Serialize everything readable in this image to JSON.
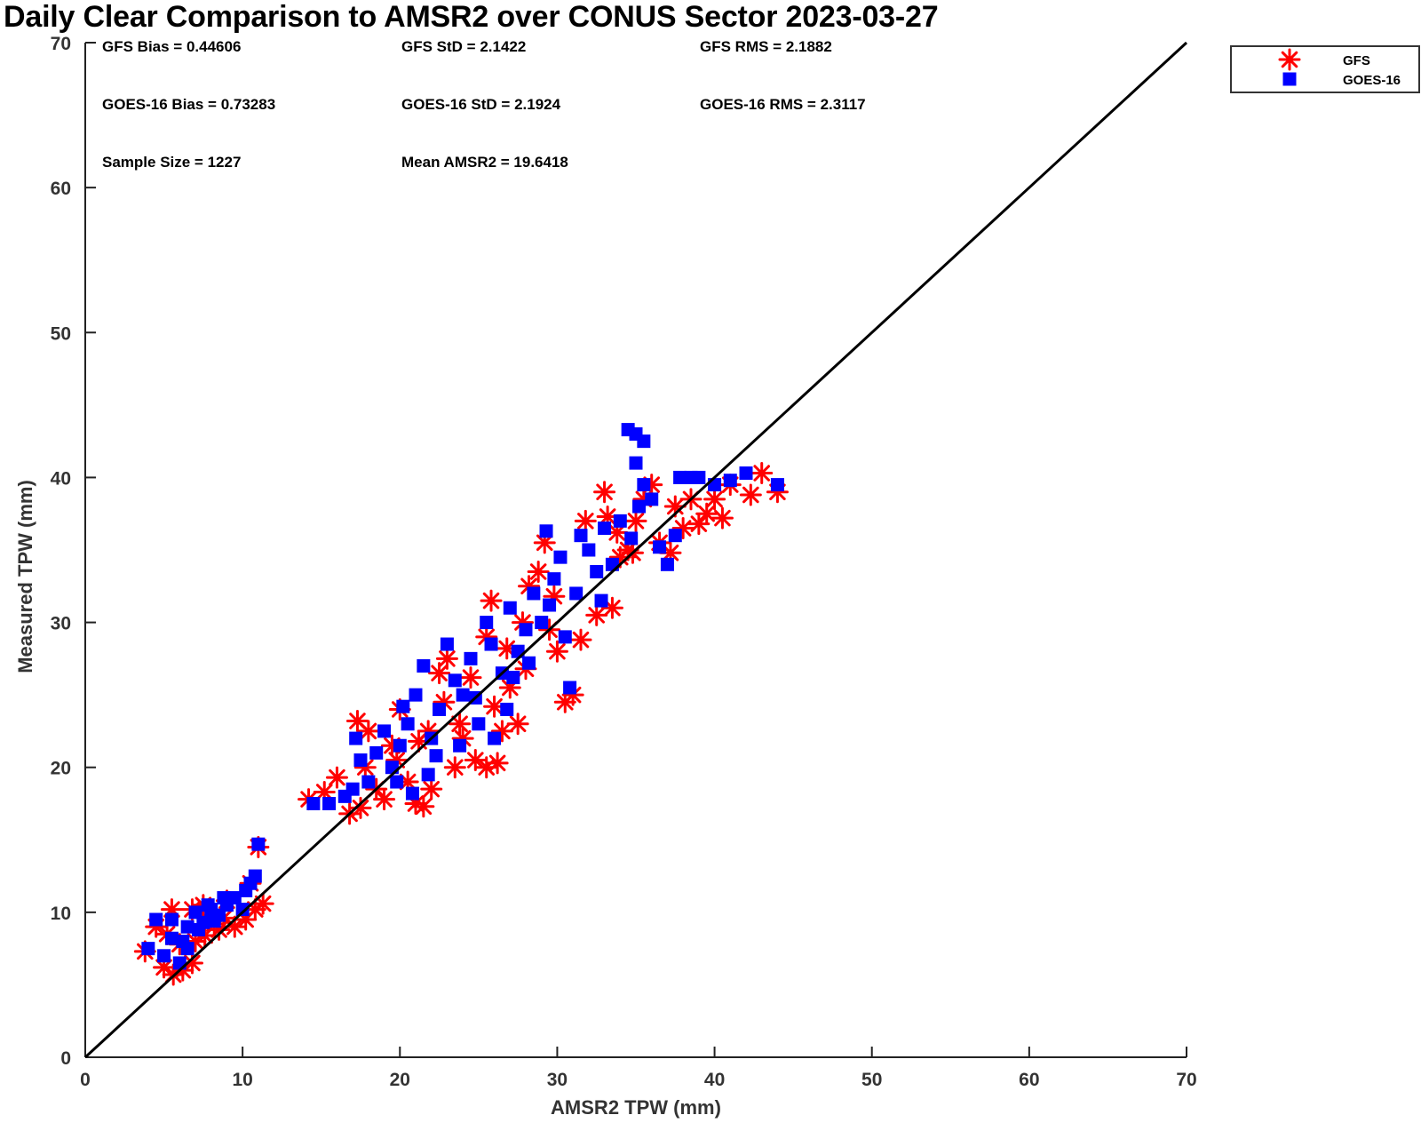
{
  "chart_data": {
    "type": "scatter",
    "title": "Daily Clear Comparison to AMSR2 over CONUS Sector 2023-03-27",
    "xlabel": "AMSR2 TPW (mm)",
    "ylabel": "Measured TPW (mm)",
    "xlim": [
      0,
      70
    ],
    "ylim": [
      0,
      70
    ],
    "xticks": [
      "0",
      "10",
      "20",
      "30",
      "40",
      "50",
      "60",
      "70"
    ],
    "yticks": [
      "0",
      "10",
      "20",
      "30",
      "40",
      "50",
      "60",
      "70"
    ],
    "grid": false,
    "legend_position": "outside top-right",
    "reference_line": {
      "from": [
        0,
        0
      ],
      "to": [
        70,
        70
      ],
      "color": "#000000"
    },
    "stats": [
      "GFS Bias = 0.44606",
      "GFS StD = 2.1422",
      "GFS RMS = 2.1882",
      "GOES-16 Bias = 0.73283",
      "GOES-16 StD = 2.1924",
      "GOES-16 RMS = 2.3117",
      "Sample Size = 1227",
      "Mean AMSR2 = 19.6418"
    ],
    "series": [
      {
        "name": "GFS",
        "marker": "asterisk",
        "color": "#ff0000",
        "points": [
          [
            3.8,
            7.3
          ],
          [
            4.5,
            9.0
          ],
          [
            5.0,
            6.2
          ],
          [
            5.6,
            5.7
          ],
          [
            6.2,
            6.0
          ],
          [
            6.8,
            6.5
          ],
          [
            5.2,
            8.5
          ],
          [
            6.0,
            7.8
          ],
          [
            7.0,
            8.0
          ],
          [
            7.6,
            8.4
          ],
          [
            8.2,
            9.2
          ],
          [
            8.8,
            9.6
          ],
          [
            9.5,
            9.0
          ],
          [
            10.2,
            9.5
          ],
          [
            10.8,
            10.2
          ],
          [
            11.3,
            10.6
          ],
          [
            9.0,
            10.8
          ],
          [
            7.5,
            10.5
          ],
          [
            6.8,
            10.2
          ],
          [
            8.5,
            8.8
          ],
          [
            11.0,
            14.5
          ],
          [
            10.5,
            12.0
          ],
          [
            5.5,
            10.2
          ],
          [
            7.8,
            9.5
          ],
          [
            14.2,
            17.8
          ],
          [
            15.2,
            18.3
          ],
          [
            16.0,
            19.3
          ],
          [
            16.8,
            16.8
          ],
          [
            17.5,
            17.2
          ],
          [
            17.3,
            23.2
          ],
          [
            18.0,
            22.5
          ],
          [
            17.8,
            20.0
          ],
          [
            18.5,
            18.5
          ],
          [
            19.0,
            17.8
          ],
          [
            19.5,
            21.5
          ],
          [
            20.0,
            24.0
          ],
          [
            20.5,
            19.0
          ],
          [
            21.0,
            17.5
          ],
          [
            21.5,
            17.3
          ],
          [
            22.0,
            18.5
          ],
          [
            21.8,
            22.5
          ],
          [
            22.5,
            26.5
          ],
          [
            23.0,
            27.5
          ],
          [
            23.5,
            20.0
          ],
          [
            24.0,
            22.0
          ],
          [
            24.8,
            20.5
          ],
          [
            25.5,
            20.0
          ],
          [
            26.2,
            20.3
          ],
          [
            26.0,
            24.2
          ],
          [
            25.5,
            29.0
          ],
          [
            25.8,
            31.5
          ],
          [
            26.5,
            22.5
          ],
          [
            27.0,
            25.5
          ],
          [
            27.5,
            23.0
          ],
          [
            28.0,
            26.8
          ],
          [
            28.2,
            32.5
          ],
          [
            28.8,
            33.5
          ],
          [
            29.2,
            35.5
          ],
          [
            29.5,
            29.5
          ],
          [
            30.0,
            28.0
          ],
          [
            30.5,
            24.5
          ],
          [
            31.0,
            25.0
          ],
          [
            31.5,
            28.8
          ],
          [
            31.8,
            37.0
          ],
          [
            32.5,
            30.5
          ],
          [
            33.0,
            39.0
          ],
          [
            33.2,
            37.3
          ],
          [
            33.5,
            31.0
          ],
          [
            34.0,
            34.5
          ],
          [
            34.5,
            35.0
          ],
          [
            35.0,
            37.0
          ],
          [
            35.5,
            38.5
          ],
          [
            36.0,
            39.5
          ],
          [
            36.5,
            35.5
          ],
          [
            37.2,
            34.8
          ],
          [
            37.5,
            38.0
          ],
          [
            38.0,
            36.5
          ],
          [
            38.5,
            38.5
          ],
          [
            39.0,
            36.8
          ],
          [
            39.5,
            37.5
          ],
          [
            40.0,
            38.5
          ],
          [
            40.5,
            37.2
          ],
          [
            41.0,
            39.5
          ],
          [
            42.3,
            38.8
          ],
          [
            43.0,
            40.3
          ],
          [
            44.0,
            39.0
          ],
          [
            34.8,
            34.8
          ],
          [
            33.8,
            36.2
          ],
          [
            22.8,
            24.5
          ],
          [
            23.8,
            23.0
          ],
          [
            19.8,
            20.5
          ],
          [
            21.2,
            21.8
          ],
          [
            24.5,
            26.2
          ],
          [
            27.8,
            30.0
          ],
          [
            29.8,
            31.8
          ],
          [
            26.8,
            28.2
          ]
        ]
      },
      {
        "name": "GOES-16",
        "marker": "square",
        "color": "#0000ff",
        "points": [
          [
            4.0,
            7.5
          ],
          [
            4.5,
            9.5
          ],
          [
            5.0,
            7.0
          ],
          [
            5.5,
            8.2
          ],
          [
            6.0,
            6.5
          ],
          [
            6.5,
            7.5
          ],
          [
            5.5,
            9.5
          ],
          [
            6.5,
            9.0
          ],
          [
            7.0,
            10.0
          ],
          [
            7.5,
            9.3
          ],
          [
            8.0,
            10.2
          ],
          [
            8.5,
            9.8
          ],
          [
            9.0,
            10.5
          ],
          [
            9.5,
            11.0
          ],
          [
            10.0,
            10.2
          ],
          [
            10.5,
            12.0
          ],
          [
            10.2,
            11.5
          ],
          [
            8.8,
            11.0
          ],
          [
            7.8,
            10.5
          ],
          [
            11.0,
            14.7
          ],
          [
            6.2,
            8.0
          ],
          [
            7.2,
            8.8
          ],
          [
            8.2,
            9.4
          ],
          [
            10.8,
            12.5
          ],
          [
            14.5,
            17.5
          ],
          [
            15.5,
            17.5
          ],
          [
            16.5,
            18.0
          ],
          [
            17.0,
            18.5
          ],
          [
            17.5,
            20.5
          ],
          [
            17.2,
            22.0
          ],
          [
            18.0,
            19.0
          ],
          [
            18.5,
            21.0
          ],
          [
            19.0,
            22.5
          ],
          [
            19.5,
            20.0
          ],
          [
            20.0,
            21.5
          ],
          [
            20.5,
            23.0
          ],
          [
            21.0,
            25.0
          ],
          [
            21.5,
            27.0
          ],
          [
            20.8,
            18.2
          ],
          [
            21.8,
            19.5
          ],
          [
            22.0,
            22.0
          ],
          [
            22.5,
            24.0
          ],
          [
            23.0,
            28.5
          ],
          [
            23.5,
            26.0
          ],
          [
            24.0,
            25.0
          ],
          [
            24.5,
            27.5
          ],
          [
            25.0,
            23.0
          ],
          [
            25.5,
            30.0
          ],
          [
            26.0,
            22.0
          ],
          [
            26.5,
            26.5
          ],
          [
            27.0,
            31.0
          ],
          [
            27.5,
            28.0
          ],
          [
            28.0,
            29.5
          ],
          [
            28.5,
            32.0
          ],
          [
            29.0,
            30.0
          ],
          [
            29.3,
            36.3
          ],
          [
            29.8,
            33.0
          ],
          [
            30.2,
            34.5
          ],
          [
            30.5,
            29.0
          ],
          [
            30.8,
            25.5
          ],
          [
            31.2,
            32.0
          ],
          [
            31.5,
            36.0
          ],
          [
            32.0,
            35.0
          ],
          [
            32.5,
            33.5
          ],
          [
            33.0,
            36.5
          ],
          [
            33.5,
            34.0
          ],
          [
            34.0,
            37.0
          ],
          [
            34.5,
            43.3
          ],
          [
            35.0,
            43.0
          ],
          [
            35.5,
            42.5
          ],
          [
            35.0,
            41.0
          ],
          [
            35.5,
            39.5
          ],
          [
            36.0,
            38.5
          ],
          [
            35.2,
            38.0
          ],
          [
            37.0,
            34.0
          ],
          [
            37.5,
            36.0
          ],
          [
            37.8,
            40.0
          ],
          [
            38.5,
            40.0
          ],
          [
            39.0,
            40.0
          ],
          [
            40.0,
            39.5
          ],
          [
            41.0,
            39.8
          ],
          [
            42.0,
            40.3
          ],
          [
            44.0,
            39.5
          ],
          [
            34.7,
            35.8
          ],
          [
            36.5,
            35.2
          ],
          [
            22.3,
            20.8
          ],
          [
            23.8,
            21.5
          ],
          [
            24.8,
            24.8
          ],
          [
            26.8,
            24.0
          ],
          [
            28.2,
            27.2
          ],
          [
            19.8,
            19.0
          ],
          [
            20.2,
            24.2
          ],
          [
            25.8,
            28.5
          ],
          [
            27.2,
            26.2
          ],
          [
            29.5,
            31.2
          ],
          [
            32.8,
            31.5
          ]
        ]
      }
    ]
  }
}
